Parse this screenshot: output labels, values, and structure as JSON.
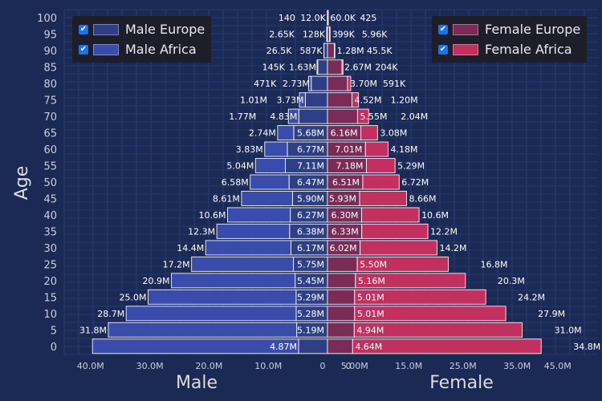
{
  "chart_data": {
    "type": "bar",
    "orientation": "horizontal-pyramid",
    "ylabel": "Age",
    "xlabel_left": "Male",
    "xlabel_right": "Female",
    "categories": [
      "0",
      "5",
      "10",
      "15",
      "20",
      "25",
      "30",
      "35",
      "40",
      "45",
      "50",
      "55",
      "60",
      "65",
      "70",
      "75",
      "80",
      "85",
      "90",
      "95",
      "100"
    ],
    "x_ticks_left": [
      {
        "value": 40,
        "label": "40.0M"
      },
      {
        "value": 30,
        "label": "30.0M"
      },
      {
        "value": 20,
        "label": "20.0M"
      },
      {
        "value": 10,
        "label": "10.0M"
      },
      {
        "value": 0,
        "label": "0"
      }
    ],
    "x_ticks_right": [
      {
        "value": 0,
        "label": "0"
      },
      {
        "value": 5,
        "label": "5.00M"
      },
      {
        "value": 15,
        "label": "15.0M"
      },
      {
        "value": 25,
        "label": "25.0M"
      },
      {
        "value": 35,
        "label": "35.0M"
      },
      {
        "value": 45,
        "label": "45.0M"
      }
    ],
    "series": [
      {
        "name": "Male Europe",
        "side": "left",
        "color": "#2e3f85",
        "values": [
          4.87,
          5.19,
          5.28,
          5.29,
          5.45,
          5.75,
          6.17,
          6.38,
          6.27,
          5.9,
          6.47,
          7.11,
          6.77,
          5.68,
          4.83,
          3.73,
          2.73,
          1.63,
          0.587,
          0.128,
          0.012
        ],
        "labels": [
          "4.87M",
          "5.19M",
          "5.28M",
          "5.29M",
          "5.45M",
          "5.75M",
          "6.17M",
          "6.38M",
          "6.27M",
          "5.90M",
          "6.47M",
          "7.11M",
          "6.77M",
          "5.68M",
          "4.83M",
          "3.73M",
          "2.73M",
          "1.63M",
          "587K",
          "128K",
          "12.0K"
        ]
      },
      {
        "name": "Male Africa",
        "side": "left",
        "color": "#3a4cab",
        "values": [
          34.8,
          31.8,
          28.7,
          25.0,
          20.9,
          17.2,
          14.4,
          12.3,
          10.6,
          8.61,
          6.58,
          5.04,
          3.83,
          2.74,
          1.77,
          1.01,
          0.471,
          0.145,
          0.0265,
          0.00265,
          0.00014
        ],
        "labels": [
          "",
          "31.8M",
          "28.7M",
          "25.0M",
          "20.9M",
          "17.2M",
          "14.4M",
          "12.3M",
          "10.6M",
          "8.61M",
          "6.58M",
          "5.04M",
          "3.83M",
          "2.74M",
          "1.77M",
          "1.01M",
          "471K",
          "145K",
          "26.5K",
          "2.65K",
          "140"
        ]
      },
      {
        "name": "Female Europe",
        "side": "right",
        "color": "#7a2c56",
        "values": [
          4.64,
          4.94,
          5.01,
          5.01,
          5.16,
          5.5,
          6.02,
          6.33,
          6.3,
          5.93,
          6.51,
          7.18,
          7.01,
          6.16,
          5.55,
          4.52,
          3.7,
          2.67,
          1.28,
          0.399,
          0.06
        ],
        "labels": [
          "4.64M",
          "4.94M",
          "5.01M",
          "5.01M",
          "5.16M",
          "5.50M",
          "6.02M",
          "6.33M",
          "6.30M",
          "5.93M",
          "6.51M",
          "7.18M",
          "7.01M",
          "6.16M",
          "5.55M",
          "4.52M",
          "3.70M",
          "2.67M",
          "1.28M",
          "399K",
          "60.0K"
        ]
      },
      {
        "name": "Female Africa",
        "side": "right",
        "color": "#c2305f",
        "values": [
          34.8,
          31.0,
          27.9,
          24.2,
          20.3,
          16.8,
          14.2,
          12.2,
          10.6,
          8.66,
          6.72,
          5.29,
          4.18,
          3.08,
          2.04,
          1.2,
          0.591,
          0.204,
          0.0455,
          0.00596,
          0.000425
        ],
        "labels": [
          "34.8M",
          "31.0M",
          "27.9M",
          "24.2M",
          "20.3M",
          "16.8M",
          "14.2M",
          "12.2M",
          "10.6M",
          "8.66M",
          "6.72M",
          "5.29M",
          "4.18M",
          "3.08M",
          "2.04M",
          "1.20M",
          "591K",
          "204K",
          "45.5K",
          "5.96K",
          "425"
        ]
      }
    ],
    "legend_left": [
      {
        "label": "Male Europe",
        "checked": true,
        "color": "#2e3f85"
      },
      {
        "label": "Male Africa",
        "checked": true,
        "color": "#3a4cab"
      }
    ],
    "legend_right": [
      {
        "label": "Female Europe",
        "checked": true,
        "color": "#7a2c56"
      },
      {
        "label": "Female Africa",
        "checked": true,
        "color": "#c2305f"
      }
    ],
    "check_glyph": "✔"
  }
}
